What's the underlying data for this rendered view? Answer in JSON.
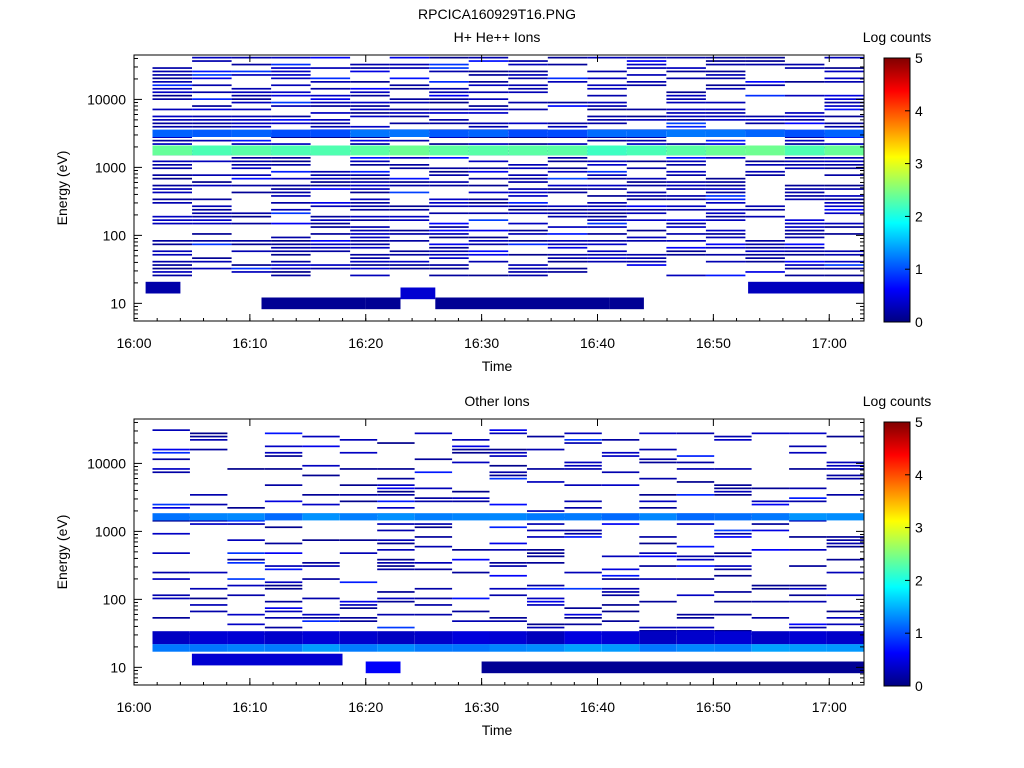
{
  "figure_title": "RPCICA160929T16.PNG",
  "chart_data": [
    {
      "type": "heatmap",
      "title": "H+ He++ Ions",
      "xlabel": "Time",
      "ylabel": "Energy (eV)",
      "y_scale": "log",
      "ylim": [
        5.5,
        45000
      ],
      "xlim": [
        "16:00",
        "17:03"
      ],
      "x_ticks": [
        "16:00",
        "16:10",
        "16:20",
        "16:30",
        "16:40",
        "16:50",
        "17:00"
      ],
      "y_ticks": [
        "10",
        "100",
        "1000",
        "10000"
      ],
      "colorbar": {
        "label": "Log counts",
        "range": [
          0,
          5
        ],
        "ticks": [
          "0",
          "1",
          "2",
          "3",
          "4",
          "5"
        ]
      },
      "grid": false,
      "dense_bands": [
        {
          "energy_low": 1500,
          "energy_high": 2100,
          "log_counts": 2.3
        },
        {
          "energy_low": 2800,
          "energy_high": 3600,
          "log_counts": 1.1
        }
      ],
      "low_energy_blocks": [
        {
          "time_start": "16:01",
          "time_end": "16:04",
          "energy": 17,
          "log_counts": 0.2
        },
        {
          "time_start": "16:11",
          "time_end": "16:20",
          "energy": 10,
          "log_counts": 0.1
        },
        {
          "time_start": "16:20",
          "time_end": "16:23",
          "energy": 10,
          "log_counts": 0.1
        },
        {
          "time_start": "16:23",
          "time_end": "16:26",
          "energy": 14,
          "log_counts": 0.4
        },
        {
          "time_start": "16:26",
          "time_end": "16:41",
          "energy": 10,
          "log_counts": 0.1
        },
        {
          "time_start": "16:41",
          "time_end": "16:44",
          "energy": 10,
          "log_counts": 0.1
        },
        {
          "time_start": "16:53",
          "time_end": "17:03",
          "energy": 17,
          "log_counts": 0.3
        }
      ]
    },
    {
      "type": "heatmap",
      "title": "Other Ions",
      "xlabel": "Time",
      "ylabel": "Energy (eV)",
      "y_scale": "log",
      "ylim": [
        5.5,
        45000
      ],
      "xlim": [
        "16:00",
        "17:03"
      ],
      "x_ticks": [
        "16:00",
        "16:10",
        "16:20",
        "16:30",
        "16:40",
        "16:50",
        "17:00"
      ],
      "y_ticks": [
        "10",
        "100",
        "1000",
        "10000"
      ],
      "colorbar": {
        "label": "Log counts",
        "range": [
          0,
          5
        ],
        "ticks": [
          "0",
          "1",
          "2",
          "3",
          "4",
          "5"
        ]
      },
      "grid": false,
      "dense_bands": [
        {
          "energy_low": 1450,
          "energy_high": 1850,
          "log_counts": 1.25
        },
        {
          "energy_low": 17,
          "energy_high": 22,
          "log_counts": 1.3
        },
        {
          "energy_low": 22,
          "energy_high": 34,
          "log_counts": 0.35
        }
      ],
      "low_energy_blocks": [
        {
          "time_start": "16:05",
          "time_end": "16:18",
          "energy": 13,
          "log_counts": 0.4
        },
        {
          "time_start": "16:20",
          "time_end": "16:23",
          "energy": 10,
          "log_counts": 0.6
        },
        {
          "time_start": "16:30",
          "time_end": "17:03",
          "energy": 10,
          "log_counts": 0.1
        }
      ]
    }
  ]
}
